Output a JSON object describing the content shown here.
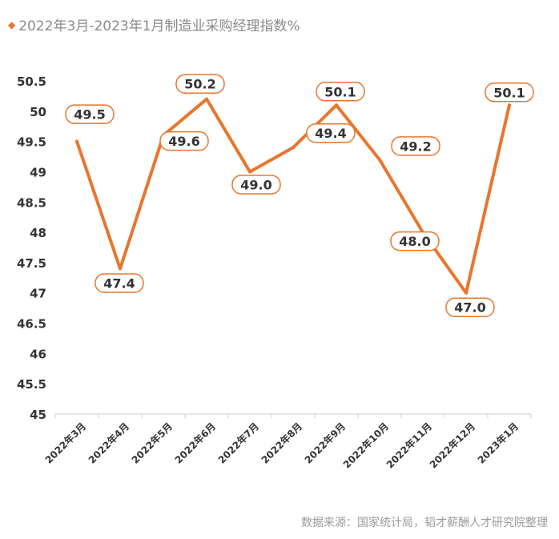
{
  "title": "2022年3月-2023年1月制造业采购经理指数%",
  "source": "数据来源：国家统计局，韬才薪酬人才研究院整理",
  "colors": {
    "accent": "#e8762d",
    "axis": "#cccccc",
    "text": "#333333"
  },
  "chart_data": {
    "type": "line",
    "title": "2022年3月-2023年1月制造业采购经理指数%",
    "categories": [
      "2022年3月",
      "2022年4月",
      "2022年5月",
      "2022年6月",
      "2022年7月",
      "2022年8月",
      "2022年9月",
      "2022年10月",
      "2022年11月",
      "2022年12月",
      "2023年1月"
    ],
    "series": [
      {
        "values": [
          49.5,
          47.4,
          49.6,
          50.2,
          49.0,
          49.4,
          50.1,
          49.2,
          48.0,
          47.0,
          50.1
        ]
      }
    ],
    "data_labels": [
      "49.5",
      "47.4",
      "49.6",
      "50.2",
      "49.0",
      "49.4",
      "50.1",
      "49.2",
      "48.0",
      "47.0",
      "50.1"
    ],
    "y_ticks": [
      "45",
      "45.5",
      "46",
      "46.5",
      "47",
      "47.5",
      "48",
      "48.5",
      "49",
      "49.5",
      "50",
      "50.5"
    ],
    "ylim": [
      45,
      50.5
    ],
    "grid": false,
    "legend": "none"
  }
}
